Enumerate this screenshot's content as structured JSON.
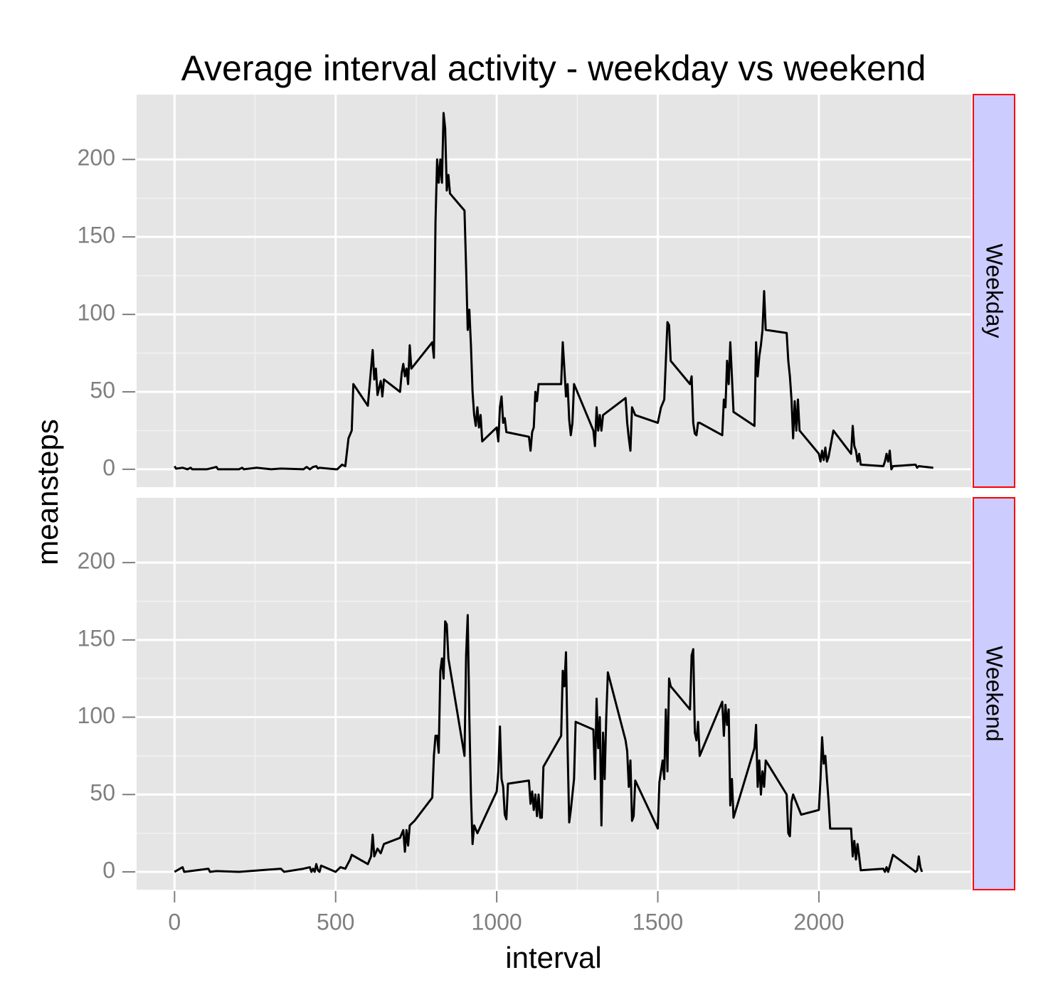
{
  "chart_data": {
    "type": "line",
    "title": "Average interval activity - weekday vs weekend",
    "x_label": "interval",
    "y_label": "meansteps",
    "facet": true,
    "grid": true,
    "xlim": [
      -117.75,
      2472.75
    ],
    "xticks": [
      0,
      500,
      1000,
      1500,
      2000
    ],
    "ylim": [
      -11.52,
      241.9
    ],
    "yticks": [
      0,
      50,
      100,
      150,
      200
    ],
    "series": [
      {
        "name": "Weekday",
        "color": "#000000",
        "x": [
          0,
          5,
          25,
          40,
          50,
          55,
          100,
          130,
          135,
          200,
          210,
          215,
          255,
          300,
          330,
          400,
          410,
          420,
          430,
          440,
          445,
          450,
          500,
          505,
          520,
          530,
          540,
          550,
          555,
          600,
          610,
          615,
          620,
          625,
          630,
          640,
          645,
          650,
          700,
          705,
          710,
          715,
          720,
          725,
          730,
          735,
          800,
          805,
          810,
          815,
          820,
          825,
          830,
          835,
          840,
          845,
          850,
          855,
          900,
          905,
          910,
          915,
          920,
          925,
          930,
          935,
          940,
          945,
          950,
          955,
          1000,
          1005,
          1010,
          1015,
          1020,
          1025,
          1030,
          1100,
          1105,
          1110,
          1115,
          1120,
          1125,
          1130,
          1200,
          1205,
          1210,
          1215,
          1220,
          1225,
          1230,
          1235,
          1240,
          1300,
          1305,
          1310,
          1315,
          1320,
          1325,
          1330,
          1400,
          1405,
          1410,
          1415,
          1420,
          1430,
          1500,
          1505,
          1510,
          1520,
          1530,
          1535,
          1540,
          1600,
          1605,
          1610,
          1615,
          1620,
          1625,
          1630,
          1700,
          1705,
          1710,
          1715,
          1720,
          1725,
          1730,
          1735,
          1800,
          1805,
          1810,
          1815,
          1820,
          1825,
          1830,
          1835,
          1900,
          1905,
          1910,
          1915,
          1920,
          1925,
          1930,
          1935,
          1940,
          2000,
          2005,
          2010,
          2015,
          2020,
          2025,
          2030,
          2045,
          2100,
          2105,
          2110,
          2115,
          2120,
          2125,
          2130,
          2200,
          2205,
          2210,
          2215,
          2220,
          2225,
          2230,
          2300,
          2305,
          2310,
          2355
        ],
        "values": [
          2,
          0.4,
          1,
          0,
          1,
          0,
          0,
          1.5,
          0,
          0,
          1,
          0,
          1,
          0,
          0.5,
          0,
          1.5,
          0,
          1.5,
          2,
          0.5,
          1,
          0,
          0,
          3,
          2,
          20,
          25,
          55,
          41,
          65,
          77,
          58,
          65,
          48,
          57,
          47,
          58,
          50,
          62,
          68,
          60,
          65,
          55,
          80,
          65,
          82,
          72,
          160,
          200,
          185,
          200,
          185,
          230,
          220,
          180,
          190,
          178,
          167,
          130,
          90,
          103,
          80,
          50,
          35,
          28,
          40,
          27,
          35,
          18,
          27,
          18,
          40,
          47,
          30,
          33,
          24,
          21,
          12,
          24,
          27,
          50,
          44,
          55,
          55,
          82,
          65,
          47,
          55,
          32,
          22,
          30,
          55,
          25,
          15,
          40,
          25,
          35,
          25,
          35,
          46,
          30,
          20,
          12,
          40,
          35,
          30,
          35,
          40,
          45,
          95,
          93,
          70,
          55,
          60,
          30,
          23,
          22,
          30,
          30,
          22,
          45,
          40,
          70,
          55,
          82,
          60,
          37,
          28,
          82,
          60,
          73,
          80,
          90,
          115,
          90,
          88,
          70,
          60,
          45,
          20,
          44,
          25,
          45,
          25,
          10,
          5,
          12,
          6,
          14,
          5,
          8,
          25,
          10,
          28,
          15,
          12,
          5,
          10,
          3,
          2,
          5,
          10,
          5,
          12,
          0,
          2,
          3,
          1,
          2,
          1
        ]
      },
      {
        "name": "Weekend",
        "color": "#000000",
        "x": [
          0,
          25,
          30,
          105,
          110,
          130,
          200,
          330,
          340,
          400,
          420,
          425,
          430,
          435,
          440,
          445,
          450,
          455,
          500,
          515,
          530,
          545,
          550,
          600,
          610,
          615,
          620,
          630,
          640,
          650,
          700,
          710,
          715,
          720,
          725,
          730,
          745,
          800,
          805,
          810,
          815,
          820,
          825,
          830,
          835,
          840,
          845,
          850,
          900,
          905,
          910,
          915,
          920,
          925,
          930,
          940,
          1000,
          1005,
          1010,
          1015,
          1020,
          1025,
          1030,
          1035,
          1100,
          1105,
          1110,
          1115,
          1120,
          1125,
          1130,
          1135,
          1140,
          1145,
          1200,
          1205,
          1210,
          1215,
          1220,
          1225,
          1230,
          1240,
          1245,
          1300,
          1305,
          1310,
          1315,
          1320,
          1325,
          1330,
          1335,
          1340,
          1345,
          1400,
          1405,
          1410,
          1415,
          1420,
          1425,
          1430,
          1500,
          1505,
          1510,
          1515,
          1520,
          1525,
          1530,
          1535,
          1540,
          1600,
          1605,
          1610,
          1615,
          1620,
          1625,
          1630,
          1700,
          1705,
          1710,
          1715,
          1720,
          1725,
          1730,
          1735,
          1800,
          1805,
          1810,
          1815,
          1820,
          1825,
          1830,
          1835,
          1900,
          1905,
          1910,
          1915,
          1920,
          1945,
          2000,
          2005,
          2010,
          2015,
          2020,
          2025,
          2030,
          2035,
          2100,
          2105,
          2110,
          2115,
          2120,
          2125,
          2130,
          2200,
          2205,
          2210,
          2215,
          2230,
          2300,
          2305,
          2310,
          2315,
          2320
        ],
        "values": [
          0,
          3,
          0,
          2,
          0,
          0.5,
          0,
          2,
          0,
          2,
          3,
          0,
          2,
          0,
          5,
          1,
          0,
          4,
          0,
          3,
          2,
          8,
          11,
          5,
          10,
          24,
          10,
          15,
          12,
          18,
          22,
          27,
          13,
          27,
          17,
          30,
          33,
          48,
          75,
          88,
          88,
          77,
          130,
          138,
          125,
          162,
          160,
          138,
          75,
          140,
          166,
          100,
          50,
          18,
          30,
          25,
          52,
          65,
          94,
          60,
          55,
          37,
          34,
          57,
          59,
          44,
          52,
          40,
          50,
          36,
          50,
          35,
          35,
          68,
          88,
          130,
          120,
          142,
          80,
          32,
          40,
          60,
          97,
          92,
          60,
          112,
          80,
          100,
          30,
          90,
          60,
          100,
          129,
          85,
          78,
          55,
          72,
          33,
          36,
          59,
          28,
          58,
          65,
          72,
          60,
          105,
          65,
          125,
          120,
          105,
          140,
          144,
          90,
          85,
          97,
          75,
          110,
          88,
          108,
          95,
          105,
          43,
          60,
          35,
          80,
          95,
          55,
          72,
          50,
          65,
          55,
          72,
          50,
          25,
          23,
          45,
          50,
          37,
          40,
          60,
          87,
          70,
          75,
          60,
          46,
          28,
          28,
          10,
          20,
          8,
          18,
          10,
          1,
          2,
          0,
          3,
          0,
          11,
          0,
          1,
          10,
          3,
          0
        ]
      }
    ]
  }
}
